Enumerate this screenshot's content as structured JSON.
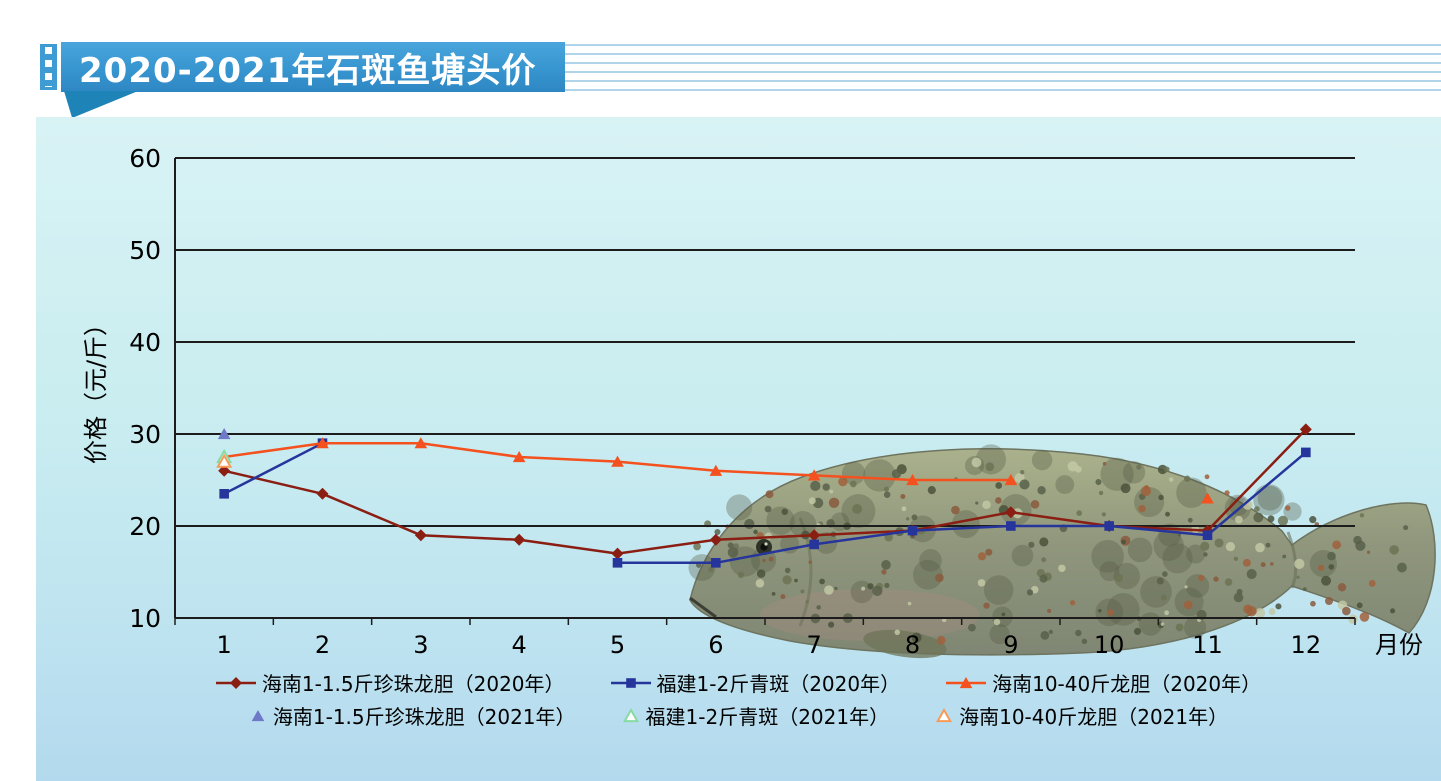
{
  "header": {
    "title": "2020-2021年石斑鱼塘头价"
  },
  "chart_data": {
    "type": "line",
    "title": "2020-2021年石斑鱼塘头价",
    "xlabel": "月份",
    "ylabel": "价格（元/斤）",
    "x_ticks": [
      1,
      2,
      3,
      4,
      5,
      6,
      7,
      8,
      9,
      10,
      11,
      12
    ],
    "ylim": [
      10,
      60
    ],
    "ytick_step": 10,
    "grid": true,
    "legend_position": "bottom",
    "series": [
      {
        "name": "海南1-1.5斤珍珠龙胆（2020年）",
        "color": "#8a1e12",
        "marker": "diamond",
        "line": true,
        "values": [
          26,
          23.5,
          19,
          18.5,
          17,
          18.5,
          19,
          19.5,
          21.5,
          20,
          19.5,
          30.5
        ]
      },
      {
        "name": "福建1-2斤青斑（2020年）",
        "color": "#26359b",
        "marker": "square",
        "line": true,
        "values": [
          23.5,
          29,
          null,
          null,
          16,
          16,
          18,
          19.5,
          20,
          20,
          19,
          28
        ]
      },
      {
        "name": "海南10-40斤龙胆（2020年）",
        "color": "#f4511e",
        "marker": "triangle",
        "line": true,
        "values": [
          27.5,
          29,
          29,
          27.5,
          27,
          26,
          25.5,
          25,
          25,
          null,
          23,
          null
        ]
      },
      {
        "name": "海南1-1.5斤珍珠龙胆（2021年）",
        "color": "#6f79c7",
        "marker": "triangle",
        "line": false,
        "values": [
          30,
          null,
          null,
          null,
          null,
          null,
          null,
          null,
          null,
          null,
          null,
          null
        ]
      },
      {
        "name": "福建1-2斤青斑（2021年）",
        "color": "#86dba2",
        "marker": "triangle-open",
        "line": false,
        "values": [
          27.5,
          null,
          null,
          null,
          null,
          null,
          null,
          null,
          null,
          null,
          null,
          null
        ]
      },
      {
        "name": "海南10-40斤龙胆（2021年）",
        "color": "#f79b57",
        "marker": "triangle-open",
        "line": false,
        "values": [
          27,
          null,
          null,
          null,
          null,
          null,
          null,
          null,
          null,
          null,
          null,
          null
        ]
      }
    ]
  },
  "decor": {
    "fish_image": "grouper-fish-photo"
  }
}
